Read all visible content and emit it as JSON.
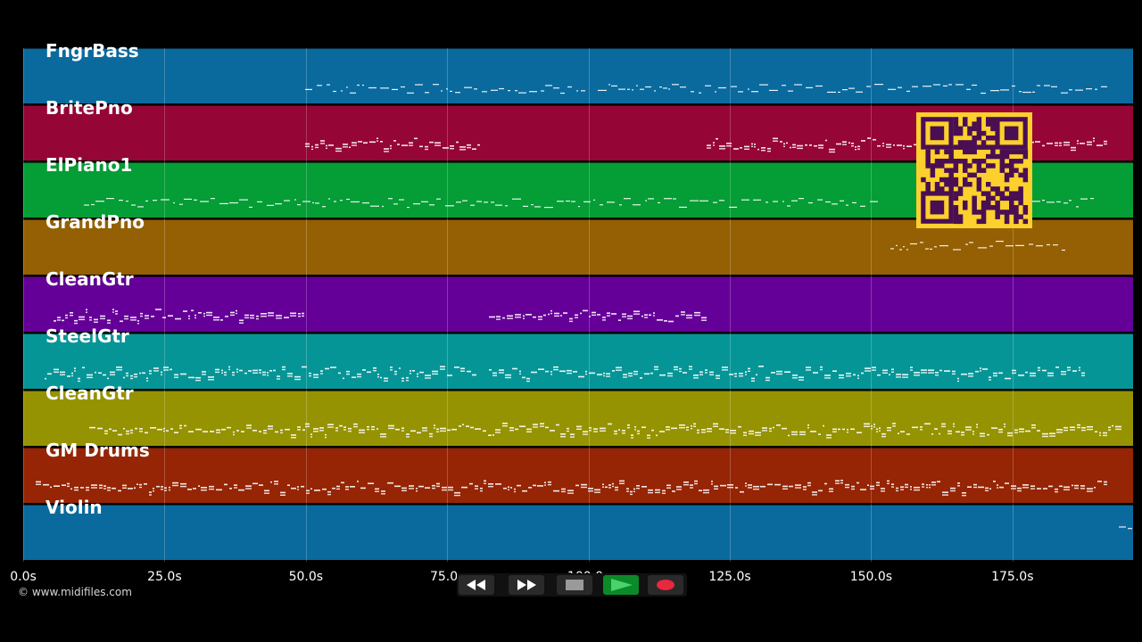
{
  "tracks": [
    {
      "name": "FngrBass",
      "color": "#0a6a9e"
    },
    {
      "name": "BritePno",
      "color": "#950535"
    },
    {
      "name": "ElPiano1",
      "color": "#059d35"
    },
    {
      "name": "GrandPno",
      "color": "#946003"
    },
    {
      "name": "CleanGtr",
      "color": "#640097"
    },
    {
      "name": "SteelGtr",
      "color": "#069596"
    },
    {
      "name": "CleanGtr",
      "color": "#959302"
    },
    {
      "name": "GM Drums",
      "color": "#952505"
    },
    {
      "name": "Violin",
      "color": "#0a6a9e"
    }
  ],
  "timeline": {
    "ticks": [
      "0.0s",
      "25.0s",
      "50.0s",
      "75.0s",
      "100.0s",
      "125.0s",
      "150.0s",
      "175.0s"
    ]
  },
  "copyright": "© www.midifiles.com",
  "transport": {
    "rewind": "rewind-icon",
    "fast_forward": "fast-forward-icon",
    "stop": "stop-icon",
    "play": "play-icon",
    "record": "record-icon",
    "colors": {
      "play": "#0b8a2a",
      "record": "#e8283c",
      "stop": "#9a9a9a"
    }
  },
  "qr_code": {
    "colors": {
      "background": "#fcd02d",
      "modules": "#4a0f52"
    }
  }
}
